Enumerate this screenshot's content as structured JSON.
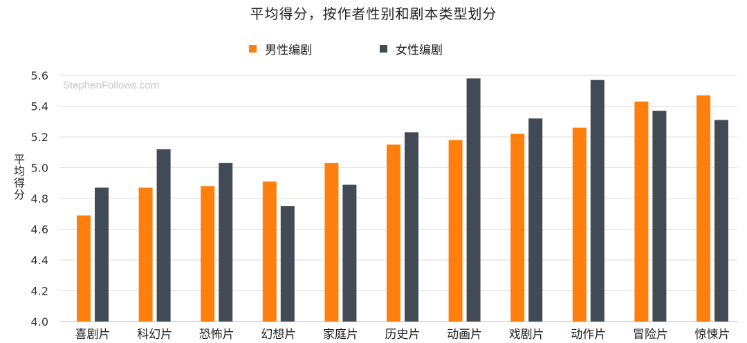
{
  "chart_data": {
    "type": "bar",
    "title": "平均得分，按作者性别和剧本类型划分",
    "watermark": "StephenFollows.com",
    "ylabel": "平均得分",
    "xlabel": "",
    "ylim": [
      4.0,
      5.6
    ],
    "yticks": [
      4.0,
      4.2,
      4.4,
      4.6,
      4.8,
      5.0,
      5.2,
      5.4,
      5.6
    ],
    "grid": true,
    "legend_position": "top-center",
    "categories": [
      "喜剧片",
      "科幻片",
      "恐怖片",
      "幻想片",
      "家庭片",
      "历史片",
      "动画片",
      "戏剧片",
      "动作片",
      "冒险片",
      "惊悚片"
    ],
    "series": [
      {
        "name": "男性编剧",
        "color": "#ff7f0e",
        "values": [
          4.69,
          4.87,
          4.88,
          4.91,
          5.03,
          5.15,
          5.18,
          5.22,
          5.26,
          5.43,
          5.47
        ]
      },
      {
        "name": "女性编剧",
        "color": "#414a55",
        "values": [
          4.87,
          5.12,
          5.03,
          4.75,
          4.89,
          5.23,
          5.58,
          5.32,
          5.57,
          5.37,
          5.31
        ]
      }
    ]
  }
}
